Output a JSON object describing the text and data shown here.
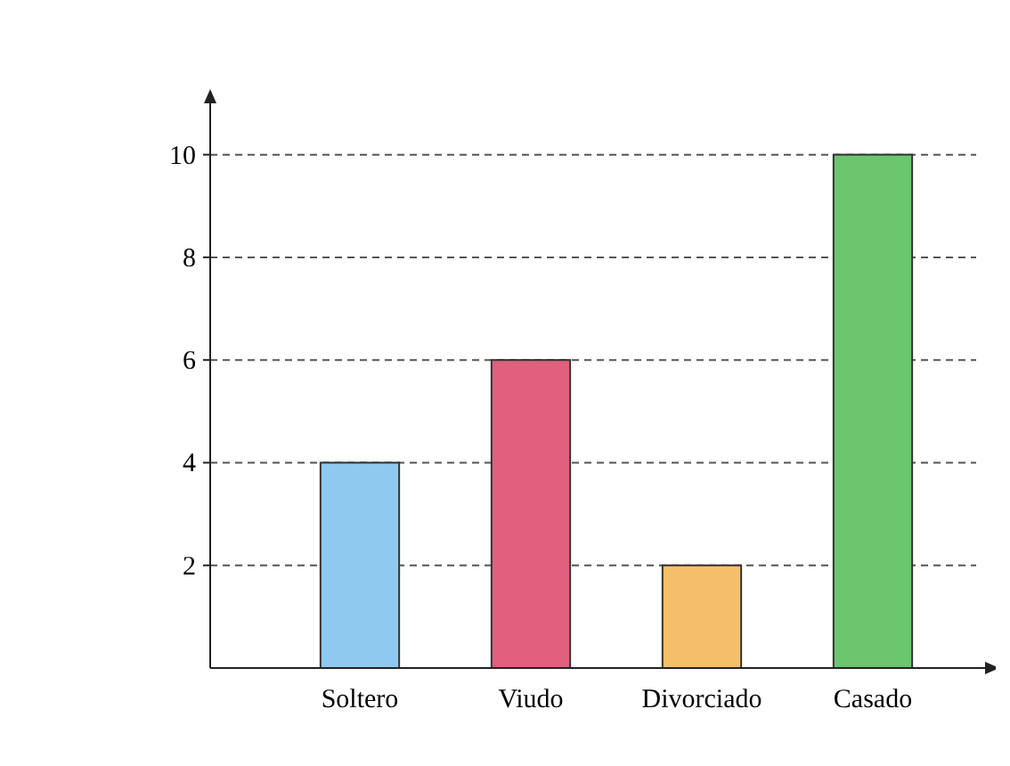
{
  "chart_data": {
    "type": "bar",
    "categories": [
      "Soltero",
      "Viudo",
      "Divorciado",
      "Casado"
    ],
    "values": [
      4,
      6,
      2,
      10
    ],
    "colors": [
      "#8ec9ef",
      "#e0607e",
      "#f5be6a",
      "#6cc66e"
    ],
    "ylim": [
      0,
      11
    ],
    "yticks": [
      2,
      4,
      6,
      8,
      10
    ],
    "grid": "y",
    "line_style": "dashed"
  }
}
